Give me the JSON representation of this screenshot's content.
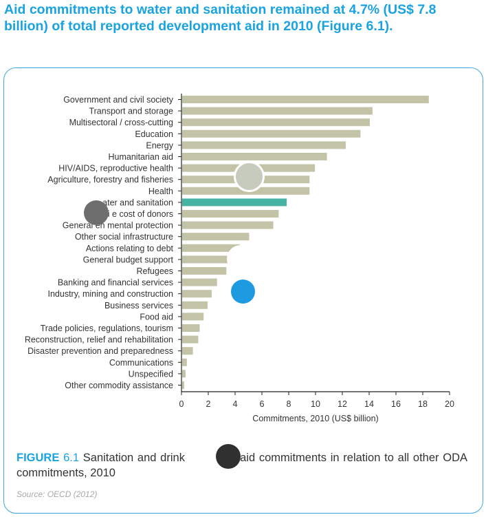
{
  "headline": "Aid commitments to water and sanitation remained at 4.7% (US$ 7.8 billion) of total reported development aid in 2010 (Figure 6.1).",
  "caption": {
    "figure_label": "FIGURE",
    "figure_number": "6.1",
    "text_a": "Sanitation and drink",
    "text_b": "ater aid commitments in relation to all other ODA commitments, 2010"
  },
  "source": "Source: OECD (2012)",
  "colors": {
    "accent": "#1aa3e0",
    "bar": "#c3c3a8",
    "highlight_bar": "#46b3a5",
    "axis": "#222222",
    "text": "#333333"
  },
  "overlay_dots": [
    {
      "name": "grey-dot-over-agriculture",
      "color": "#c6cbbe",
      "ring": "#ffffff"
    },
    {
      "name": "dark-grey-dot-over-admin-label",
      "color": "#6e6e6e",
      "ring": ""
    },
    {
      "name": "white-dot-over-bars",
      "color": "#ffffff",
      "ring": ""
    },
    {
      "name": "blue-dot-over-bars",
      "color": "#1e9be0",
      "ring": ""
    },
    {
      "name": "black-dot-over-caption",
      "color": "#303030",
      "ring": ""
    }
  ],
  "chart_data": {
    "type": "bar",
    "orientation": "horizontal",
    "title": "",
    "xlabel": "Commitments, 2010 (US$ billion)",
    "ylabel": "",
    "xlim": [
      0,
      20
    ],
    "xticks": [
      "0",
      "2",
      "4",
      "6",
      "8",
      "10",
      "12",
      "14",
      "16",
      "18",
      "20"
    ],
    "grid": false,
    "highlight_category": "Water supply and sanitation",
    "categories": [
      "Government and civil society",
      "Transport and storage",
      "Multisectoral / cross-cutting",
      "Education",
      "Energy",
      "Humanitarian aid",
      "HIV/AIDS, reproductive health",
      "Agriculture, forestry and fisheries",
      "Health",
      "Water supply and sanitation",
      "Administrative cost of donors",
      "General environmental protection",
      "Other social infrastructure",
      "Actions relating to debt",
      "General budget support",
      "Refugees",
      "Banking and financial services",
      "Industry, mining and construction",
      "Business services",
      "Food aid",
      "Trade policies, regulations, tourism",
      "Reconstruction, relief and rehabilitation",
      "Disaster prevention and preparedness",
      "Communications",
      "Unspecified",
      "Other commodity assistance"
    ],
    "visible_labels": [
      "Government and civil society",
      "Transport and storage",
      "Multisectoral / cross-cutting",
      "Education",
      "Energy",
      "Humanitarian aid",
      "HIV/AIDS, reproductive health",
      "Agriculture, forestry and fisheries",
      "Health",
      "ater and sanitation",
      "Admi         e cost of donors",
      "General en         mental protection",
      "Other social infrastructure",
      "Actions relating to debt",
      "General budget support",
      "Refugees",
      "Banking and financial services",
      "Industry, mining and construction",
      "Business services",
      "Food aid",
      "Trade policies, regulations, tourism",
      "Reconstruction, relief and rehabilitation",
      "Disaster prevention and preparedness",
      "Communications",
      "Unspecified",
      "Other commodity assistance"
    ],
    "values": [
      18.4,
      14.2,
      14.0,
      13.3,
      12.2,
      10.8,
      9.9,
      9.5,
      9.5,
      7.8,
      7.2,
      6.8,
      5.0,
      4.3,
      3.5,
      3.3,
      2.6,
      2.2,
      1.9,
      1.6,
      1.3,
      1.2,
      0.8,
      0.35,
      0.25,
      0.15
    ]
  }
}
